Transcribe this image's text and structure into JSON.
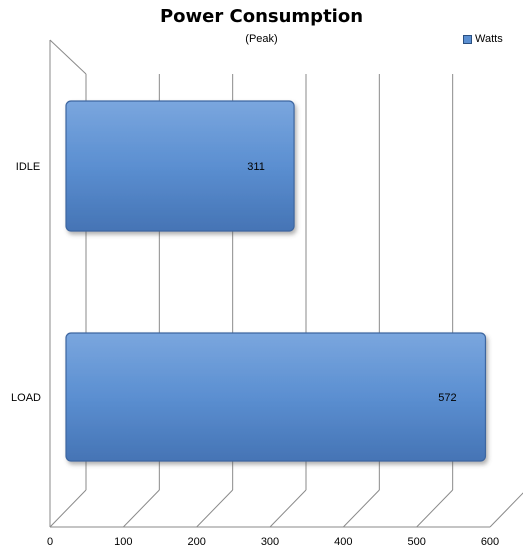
{
  "chart_data": {
    "type": "bar",
    "orientation": "horizontal",
    "title": "Power Consumption",
    "subtitle": "(Peak)",
    "categories": [
      "IDLE",
      "LOAD"
    ],
    "series": [
      {
        "name": "Watts",
        "values": [
          311,
          572
        ],
        "color": "#5b8fd1"
      }
    ],
    "data_labels": [
      "311",
      "572"
    ],
    "xlim": [
      0,
      600
    ],
    "x_ticks": [
      0,
      100,
      200,
      300,
      400,
      500,
      600
    ],
    "x_tick_labels": [
      "0",
      "100",
      "200",
      "300",
      "400",
      "500",
      "600"
    ],
    "grid": true,
    "legend_position": "top-right",
    "style": "3d"
  }
}
